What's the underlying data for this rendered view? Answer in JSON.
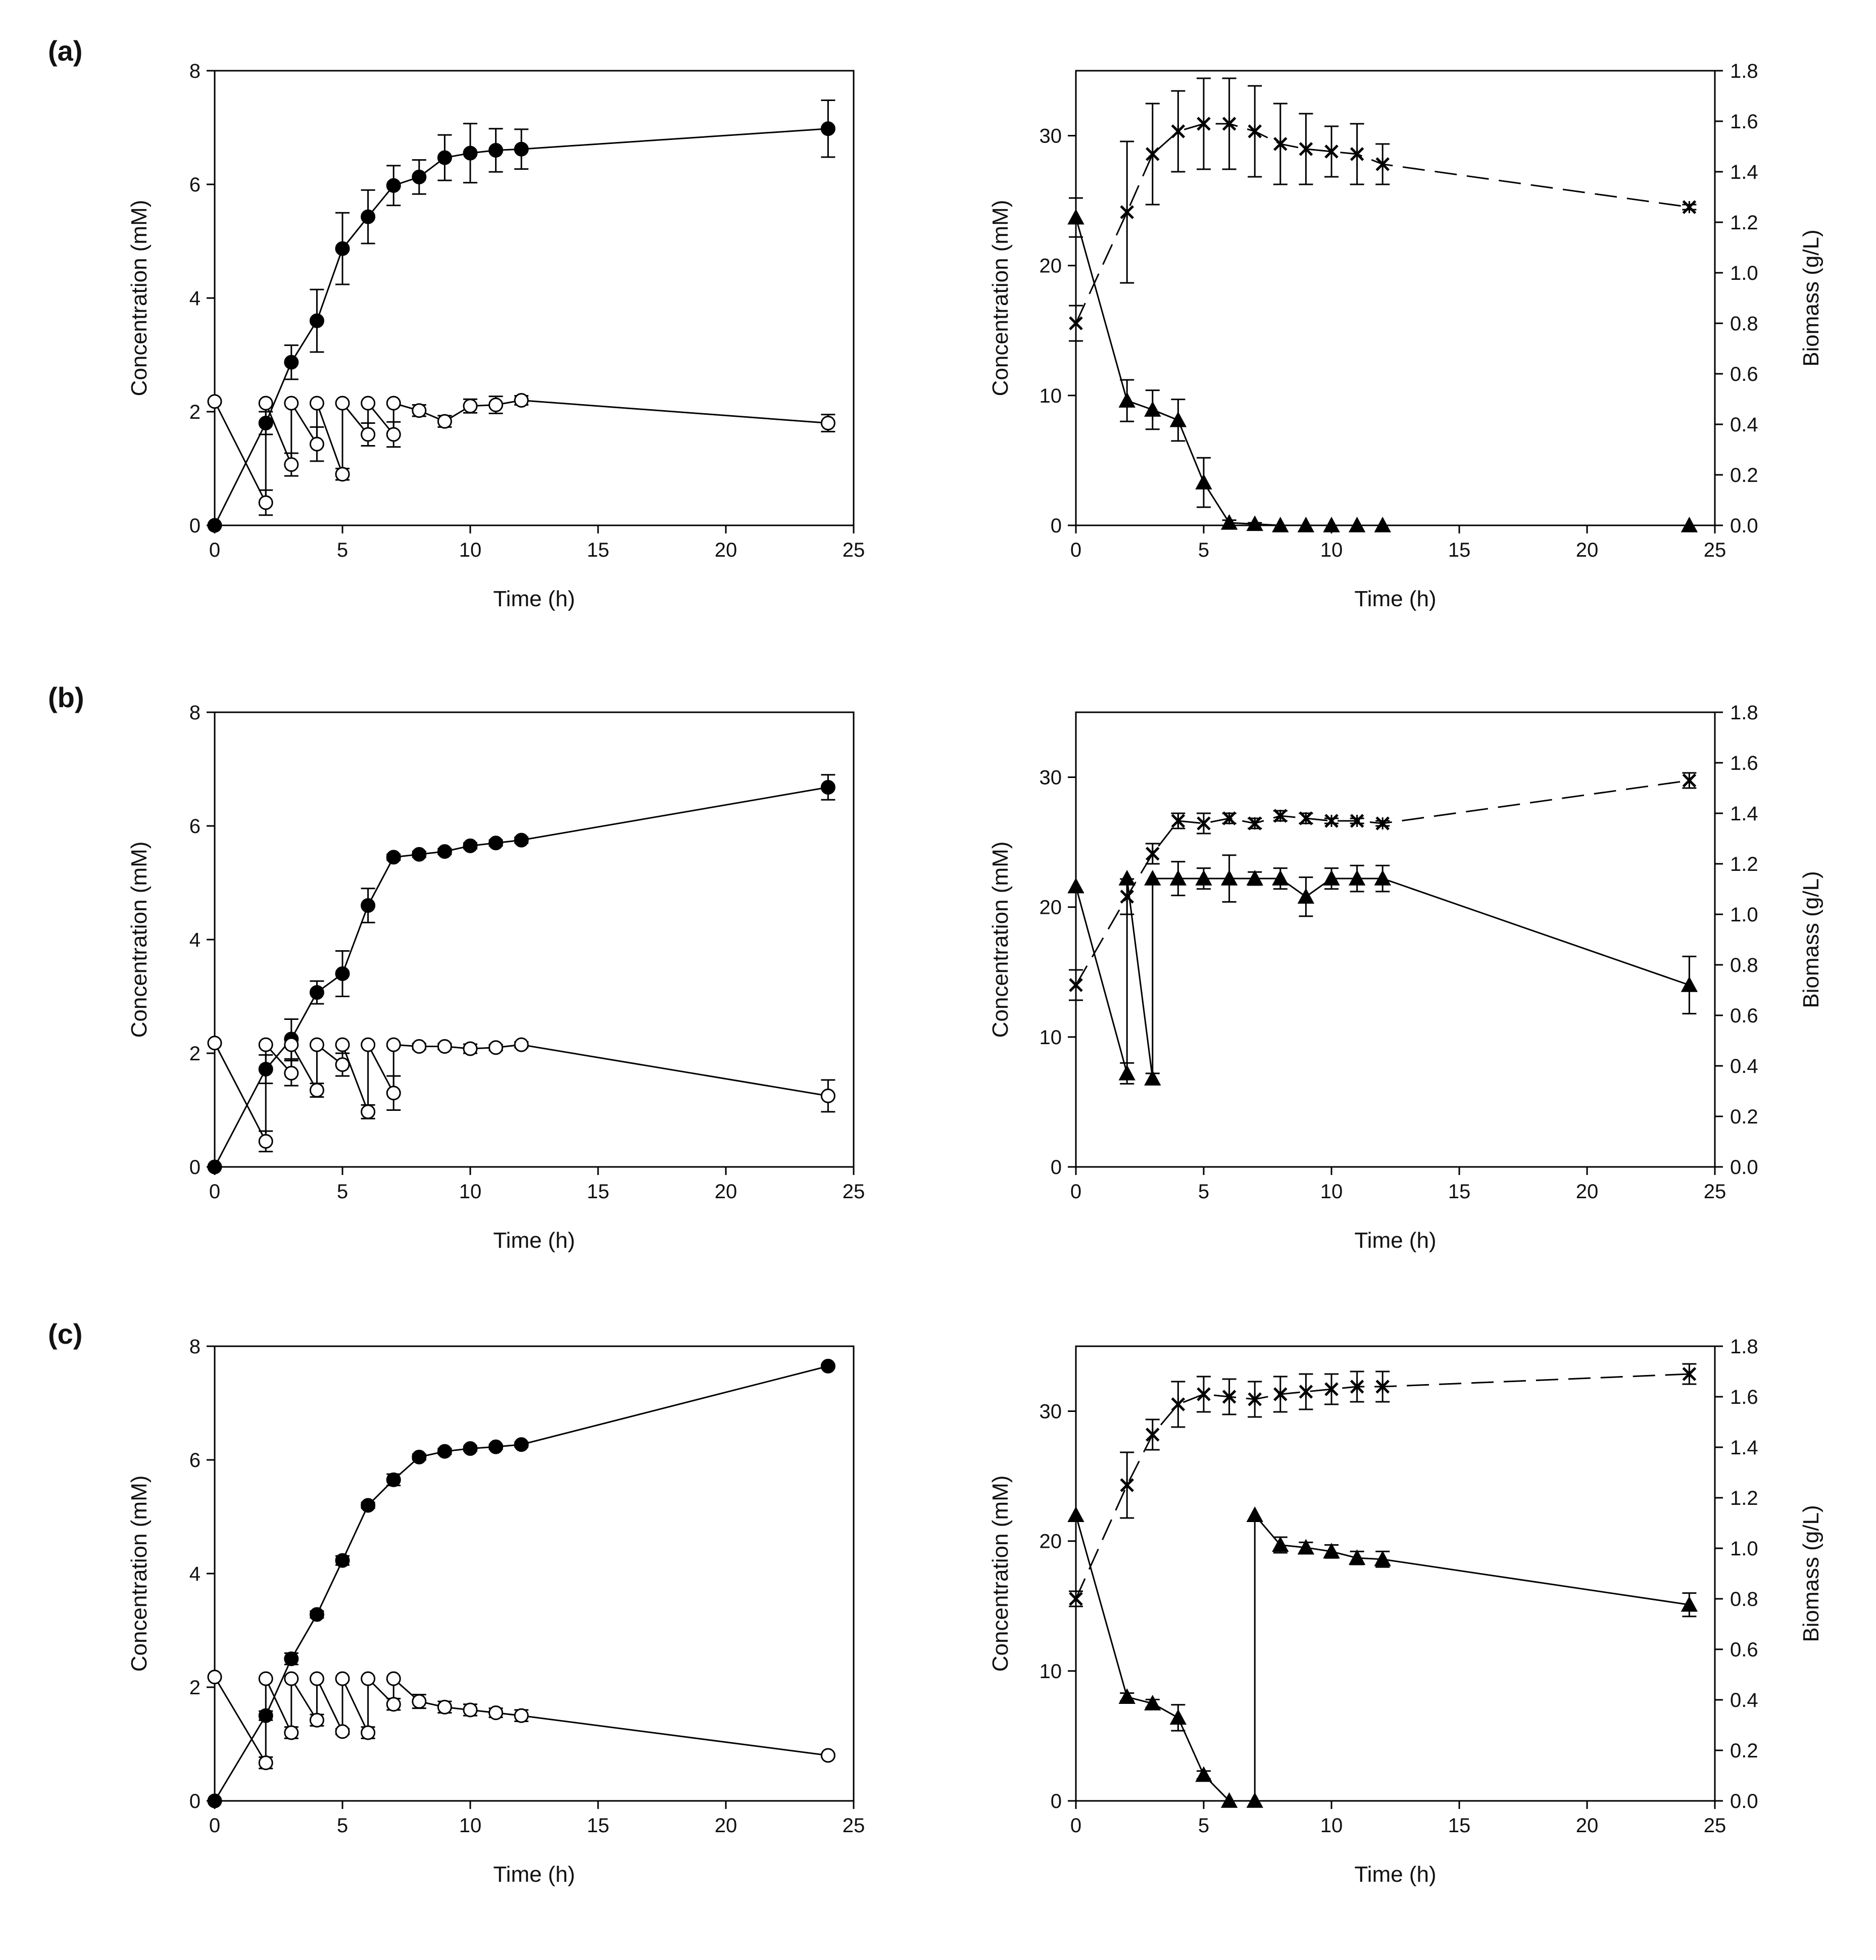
{
  "figure": {
    "panel_labels": [
      "(a)",
      "(b)",
      "(c)"
    ],
    "colors": {
      "ink": "#000000",
      "open_fill": "#ffffff",
      "background": "#ffffff"
    }
  },
  "chart_data": [
    {
      "id": "a-left",
      "row": 0,
      "col": "left",
      "type": "line",
      "xlabel": "Time (h)",
      "ylabel": "Concentration (mM)",
      "xlim": [
        0,
        25
      ],
      "ylim": [
        0,
        8
      ],
      "xticks": [
        0,
        5,
        10,
        15,
        20,
        25
      ],
      "yticks": [
        0,
        2,
        4,
        6,
        8
      ],
      "series": [
        {
          "name": "filled circles",
          "marker": "circle-filled",
          "dash": "solid",
          "axis": "left",
          "x": [
            0,
            2,
            3,
            4,
            5,
            6,
            7,
            8,
            9,
            10,
            11,
            12,
            24
          ],
          "y": [
            0,
            1.8,
            2.87,
            3.6,
            4.87,
            5.43,
            5.98,
            6.13,
            6.47,
            6.55,
            6.6,
            6.62,
            6.98
          ],
          "err": [
            0,
            0.2,
            0.3,
            0.55,
            0.63,
            0.47,
            0.35,
            0.3,
            0.4,
            0.52,
            0.38,
            0.35,
            0.5
          ]
        },
        {
          "name": "open circles",
          "marker": "circle-open",
          "dash": "solid",
          "axis": "left",
          "x": [
            0,
            2,
            2,
            3,
            3,
            4,
            4,
            5,
            5,
            6,
            6,
            7,
            7,
            8,
            9,
            10,
            11,
            12,
            24
          ],
          "y": [
            2.18,
            0.4,
            2.15,
            1.07,
            2.15,
            1.43,
            2.15,
            0.9,
            2.15,
            1.6,
            2.15,
            1.6,
            2.15,
            2.02,
            1.83,
            2.1,
            2.12,
            2.2,
            1.8
          ],
          "err": [
            0,
            0.22,
            0,
            0.2,
            0,
            0.3,
            0,
            0.1,
            0,
            0.2,
            0,
            0.22,
            0,
            0.1,
            0.1,
            0.12,
            0.15,
            0.08,
            0.15
          ]
        }
      ]
    },
    {
      "id": "a-right",
      "row": 0,
      "col": "right",
      "type": "line",
      "xlabel": "Time (h)",
      "ylabel": "Concentration (mM)",
      "y2label": "Biomass (g/L)",
      "xlim": [
        0,
        25
      ],
      "ylim": [
        0,
        35
      ],
      "y2lim": [
        0,
        1.8
      ],
      "xticks": [
        0,
        5,
        10,
        15,
        20,
        25
      ],
      "yticks": [
        0,
        10,
        20,
        30
      ],
      "y2ticks": [
        "0.0",
        "0.2",
        "0.4",
        "0.6",
        "0.8",
        "1.0",
        "1.2",
        "1.4",
        "1.6",
        "1.8"
      ],
      "series": [
        {
          "name": "triangles",
          "marker": "triangle-filled",
          "dash": "solid",
          "axis": "left",
          "x": [
            0,
            2,
            3,
            4,
            5,
            6,
            7,
            8,
            9,
            10,
            11,
            12,
            24
          ],
          "y": [
            23.7,
            9.6,
            8.9,
            8.1,
            3.3,
            0.2,
            0.1,
            0,
            0,
            0,
            0,
            0,
            0
          ],
          "err": [
            1.5,
            1.6,
            1.5,
            1.6,
            1.9,
            0.2,
            0.1,
            0,
            0,
            0,
            0,
            0,
            0
          ]
        },
        {
          "name": "crosses",
          "marker": "cross",
          "dash": "dashed",
          "axis": "right",
          "x": [
            0,
            2,
            3,
            4,
            5,
            6,
            7,
            8,
            9,
            10,
            11,
            12,
            24
          ],
          "y": [
            0.8,
            1.24,
            1.47,
            1.56,
            1.59,
            1.59,
            1.56,
            1.51,
            1.49,
            1.48,
            1.47,
            1.43,
            1.26
          ],
          "err": [
            0.07,
            0.28,
            0.2,
            0.16,
            0.18,
            0.18,
            0.18,
            0.16,
            0.14,
            0.1,
            0.12,
            0.08,
            0.01
          ]
        }
      ]
    },
    {
      "id": "b-left",
      "row": 1,
      "col": "left",
      "type": "line",
      "xlabel": "Time (h)",
      "ylabel": "Concentration (mM)",
      "xlim": [
        0,
        25
      ],
      "ylim": [
        0,
        8
      ],
      "xticks": [
        0,
        5,
        10,
        15,
        20,
        25
      ],
      "yticks": [
        0,
        2,
        4,
        6,
        8
      ],
      "series": [
        {
          "name": "filled circles",
          "marker": "circle-filled",
          "dash": "solid",
          "axis": "left",
          "x": [
            0,
            2,
            3,
            4,
            5,
            6,
            7,
            8,
            9,
            10,
            11,
            12,
            24
          ],
          "y": [
            0,
            1.72,
            2.25,
            3.07,
            3.4,
            4.6,
            5.45,
            5.5,
            5.55,
            5.65,
            5.7,
            5.75,
            6.68
          ],
          "err": [
            0,
            0.25,
            0.35,
            0.2,
            0.4,
            0.3,
            0.05,
            0.05,
            0.05,
            0.05,
            0.05,
            0.05,
            0.22
          ]
        },
        {
          "name": "open circles",
          "marker": "circle-open",
          "dash": "solid",
          "axis": "left",
          "x": [
            0,
            2,
            2,
            3,
            3,
            4,
            4,
            5,
            5,
            6,
            6,
            7,
            7,
            8,
            9,
            10,
            11,
            12,
            24
          ],
          "y": [
            2.18,
            0.45,
            2.15,
            1.65,
            2.15,
            1.35,
            2.15,
            1.8,
            2.15,
            0.97,
            2.15,
            1.3,
            2.15,
            2.12,
            2.12,
            2.08,
            2.1,
            2.15,
            1.25
          ],
          "err": [
            0,
            0.18,
            0,
            0.22,
            0,
            0.12,
            0,
            0.2,
            0,
            0.12,
            0,
            0.3,
            0,
            0.05,
            0.05,
            0.08,
            0.05,
            0.05,
            0.28
          ]
        }
      ]
    },
    {
      "id": "b-right",
      "row": 1,
      "col": "right",
      "type": "line",
      "xlabel": "Time (h)",
      "ylabel": "Concentration (mM)",
      "y2label": "Biomass (g/L)",
      "xlim": [
        0,
        25
      ],
      "ylim": [
        0,
        35
      ],
      "y2lim": [
        0,
        1.8
      ],
      "xticks": [
        0,
        5,
        10,
        15,
        20,
        25
      ],
      "yticks": [
        0,
        10,
        20,
        30
      ],
      "y2ticks": [
        "0.0",
        "0.2",
        "0.4",
        "0.6",
        "0.8",
        "1.0",
        "1.2",
        "1.4",
        "1.6",
        "1.8"
      ],
      "series": [
        {
          "name": "triangles",
          "marker": "triangle-filled",
          "dash": "solid",
          "axis": "left",
          "x": [
            0,
            2,
            2,
            3,
            3,
            4,
            5,
            6,
            7,
            8,
            9,
            10,
            11,
            12,
            24
          ],
          "y": [
            21.6,
            7.2,
            22.2,
            6.8,
            22.2,
            22.2,
            22.2,
            22.2,
            22.2,
            22.2,
            20.8,
            22.2,
            22.2,
            22.2,
            14.0
          ],
          "err": [
            0,
            0.8,
            0,
            0.4,
            0,
            1.3,
            0.8,
            1.8,
            0.5,
            0.8,
            1.5,
            0.8,
            1.0,
            1.0,
            2.2
          ]
        },
        {
          "name": "crosses",
          "marker": "cross",
          "dash": "dashed",
          "axis": "right",
          "x": [
            0,
            2,
            3,
            4,
            5,
            6,
            7,
            8,
            9,
            10,
            11,
            12,
            24
          ],
          "y": [
            0.72,
            1.07,
            1.24,
            1.37,
            1.36,
            1.38,
            1.36,
            1.39,
            1.38,
            1.37,
            1.37,
            1.36,
            1.53
          ],
          "err": [
            0.06,
            0.07,
            0.04,
            0.03,
            0.04,
            0.02,
            0.02,
            0.02,
            0.02,
            0.01,
            0.01,
            0.01,
            0.03
          ]
        }
      ]
    },
    {
      "id": "c-left",
      "row": 2,
      "col": "left",
      "type": "line",
      "xlabel": "Time (h)",
      "ylabel": "Concentration (mM)",
      "xlim": [
        0,
        25
      ],
      "ylim": [
        0,
        8
      ],
      "xticks": [
        0,
        5,
        10,
        15,
        20,
        25
      ],
      "yticks": [
        0,
        2,
        4,
        6,
        8
      ],
      "series": [
        {
          "name": "filled circles",
          "marker": "circle-filled",
          "dash": "solid",
          "axis": "left",
          "x": [
            0,
            2,
            3,
            4,
            5,
            6,
            7,
            8,
            9,
            10,
            11,
            12,
            24
          ],
          "y": [
            0,
            1.5,
            2.5,
            3.28,
            4.23,
            5.2,
            5.65,
            6.05,
            6.15,
            6.2,
            6.23,
            6.27,
            7.65
          ],
          "err": [
            0,
            0.08,
            0.1,
            0.06,
            0.08,
            0.05,
            0.1,
            0.05,
            0.05,
            0.04,
            0.04,
            0.04,
            0.03
          ]
        },
        {
          "name": "open circles",
          "marker": "circle-open",
          "dash": "solid",
          "axis": "left",
          "x": [
            0,
            2,
            2,
            3,
            3,
            4,
            4,
            5,
            5,
            6,
            6,
            7,
            7,
            8,
            9,
            10,
            11,
            12,
            24
          ],
          "y": [
            2.18,
            0.67,
            2.15,
            1.2,
            2.15,
            1.42,
            2.15,
            1.22,
            2.15,
            1.2,
            2.15,
            1.7,
            2.15,
            1.75,
            1.65,
            1.6,
            1.55,
            1.5,
            0.8
          ],
          "err": [
            0,
            0.1,
            0,
            0.1,
            0,
            0.1,
            0,
            0.05,
            0,
            0.1,
            0,
            0.1,
            0,
            0.12,
            0.1,
            0.1,
            0.08,
            0.1,
            0.03
          ]
        }
      ]
    },
    {
      "id": "c-right",
      "row": 2,
      "col": "right",
      "type": "line",
      "xlabel": "Time (h)",
      "ylabel": "Concentration (mM)",
      "y2label": "Biomass (g/L)",
      "xlim": [
        0,
        25
      ],
      "ylim": [
        0,
        35
      ],
      "y2lim": [
        0,
        1.8
      ],
      "xticks": [
        0,
        5,
        10,
        15,
        20,
        25
      ],
      "yticks": [
        0,
        10,
        20,
        30
      ],
      "y2ticks": [
        "0.0",
        "0.2",
        "0.4",
        "0.6",
        "0.8",
        "1.0",
        "1.2",
        "1.4",
        "1.6",
        "1.8"
      ],
      "series": [
        {
          "name": "triangles",
          "marker": "triangle-filled",
          "dash": "solid",
          "axis": "left",
          "x": [
            0,
            2,
            3,
            4,
            5,
            6,
            7,
            7,
            8,
            9,
            10,
            11,
            12,
            24
          ],
          "y": [
            22.0,
            8.0,
            7.5,
            6.4,
            2.0,
            0,
            0,
            22.0,
            19.7,
            19.5,
            19.2,
            18.7,
            18.6,
            15.1
          ],
          "err": [
            0,
            0.3,
            0.3,
            1.0,
            0.3,
            0,
            0,
            0,
            0.6,
            0.4,
            0.5,
            0.5,
            0.6,
            0.9
          ]
        },
        {
          "name": "crosses",
          "marker": "cross",
          "dash": "dashed",
          "axis": "right",
          "x": [
            0,
            2,
            3,
            4,
            5,
            6,
            7,
            8,
            9,
            10,
            11,
            12,
            24
          ],
          "y": [
            0.8,
            1.25,
            1.45,
            1.57,
            1.61,
            1.6,
            1.59,
            1.61,
            1.62,
            1.63,
            1.64,
            1.64,
            1.69
          ],
          "err": [
            0.03,
            0.13,
            0.06,
            0.09,
            0.07,
            0.07,
            0.07,
            0.07,
            0.07,
            0.06,
            0.06,
            0.06,
            0.04
          ]
        }
      ]
    }
  ]
}
